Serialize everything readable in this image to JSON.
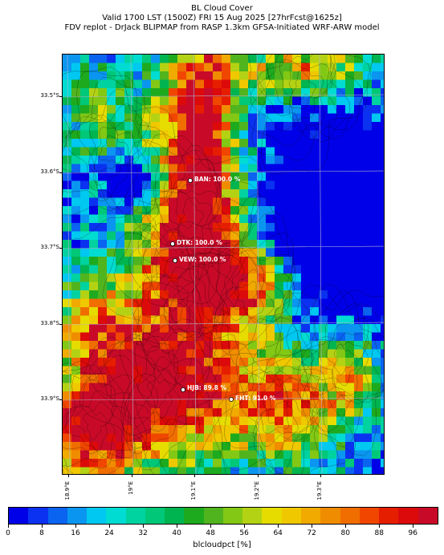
{
  "title": {
    "line1": "BL Cloud Cover",
    "line2": "Valid 1700 LST (1500Z) FRI 15 Aug 2025 [27hrFcst@1625z]",
    "line3": "FDV replot - DrJack BLIPMAP from RASP 1.3km GFSA-Initiated WRF-ARW model"
  },
  "map": {
    "lat_ticks": [
      "33.5°S",
      "33.6°S",
      "33.7°S",
      "33.8°S",
      "33.9°S"
    ],
    "lon_ticks": [
      "18.9°E",
      "19°E",
      "19.1°E",
      "19.2°E",
      "19.3°E"
    ],
    "stations": [
      {
        "name": "BAN",
        "value": "100.0 %",
        "label": "BAN: 100.0 %"
      },
      {
        "name": "DTK",
        "value": "100.0 %",
        "label": "DTK: 100.0 %"
      },
      {
        "name": "VEW",
        "value": "100.0 %",
        "label": "VEW: 100.0 %"
      },
      {
        "name": "HJB",
        "value": "89.8 %",
        "label": "HJB: 89.8 %"
      },
      {
        "name": "FHT",
        "value": "91.0 %",
        "label": "FHT: 91.0 %"
      }
    ]
  },
  "colorbar": {
    "title": "blcloudpct [%]",
    "tick_labels": [
      "0",
      "8",
      "16",
      "24",
      "32",
      "40",
      "48",
      "56",
      "64",
      "72",
      "80",
      "88",
      "96"
    ],
    "range": [
      0,
      100
    ],
    "colors": [
      "#0000e8",
      "#0a32f0",
      "#0a64f0",
      "#0a96f0",
      "#00c8f0",
      "#00dcd2",
      "#00d2a0",
      "#00c878",
      "#00b450",
      "#1eaa1e",
      "#50b41e",
      "#82c814",
      "#b4d214",
      "#e6dc00",
      "#f0c800",
      "#f0aa00",
      "#f08c00",
      "#f06e00",
      "#f04600",
      "#e61e00",
      "#dc0a0a",
      "#c80a28"
    ]
  }
}
